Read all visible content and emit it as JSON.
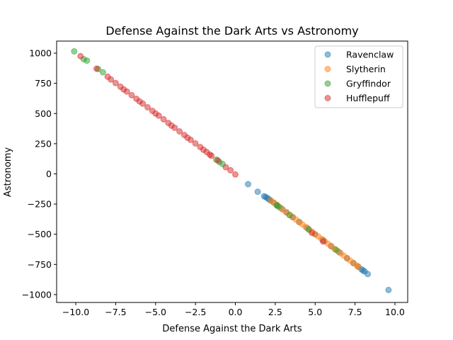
{
  "chart_data": {
    "type": "scatter",
    "title": "Defense Against the Dark Arts vs Astronomy",
    "xlabel": "Defense Against the Dark Arts",
    "ylabel": "Astronomy",
    "xlim": [
      -11.2,
      10.8
    ],
    "ylim": [
      -1065,
      1100
    ],
    "xticks": [
      -10.0,
      -7.5,
      -5.0,
      -2.5,
      0.0,
      2.5,
      5.0,
      7.5,
      10.0
    ],
    "xtick_labels": [
      "−10.0",
      "−7.5",
      "−5.0",
      "−2.5",
      "0.0",
      "2.5",
      "5.0",
      "7.5",
      "10.0"
    ],
    "yticks": [
      1000,
      750,
      500,
      250,
      0,
      -250,
      -500,
      -750,
      -1000
    ],
    "ytick_labels": [
      "1000",
      "750",
      "500",
      "250",
      "0",
      "−250",
      "−500",
      "−750",
      "−1000"
    ],
    "grid": false,
    "legend_position": "top-right",
    "marker_opacity": 0.5,
    "series": [
      {
        "name": "Ravenclaw",
        "color": "#1f77b4",
        "points": [
          [
            0.8,
            -85
          ],
          [
            1.4,
            -148
          ],
          [
            1.8,
            -185
          ],
          [
            1.9,
            -192
          ],
          [
            2.0,
            -200
          ],
          [
            2.1,
            -210
          ],
          [
            2.2,
            -220
          ],
          [
            2.4,
            -238
          ],
          [
            2.6,
            -258
          ],
          [
            2.9,
            -288
          ],
          [
            3.2,
            -318
          ],
          [
            3.6,
            -358
          ],
          [
            4.0,
            -398
          ],
          [
            4.5,
            -448
          ],
          [
            5.0,
            -500
          ],
          [
            5.5,
            -548
          ],
          [
            6.0,
            -598
          ],
          [
            6.5,
            -648
          ],
          [
            7.0,
            -698
          ],
          [
            7.4,
            -738
          ],
          [
            7.7,
            -768
          ],
          [
            7.9,
            -790
          ],
          [
            8.0,
            -800
          ],
          [
            8.1,
            -808
          ],
          [
            8.3,
            -830
          ],
          [
            9.6,
            -962
          ]
        ]
      },
      {
        "name": "Slytherin",
        "color": "#ff7f0e",
        "points": [
          [
            2.2,
            -218
          ],
          [
            2.4,
            -238
          ],
          [
            2.6,
            -255
          ],
          [
            2.8,
            -278
          ],
          [
            3.0,
            -298
          ],
          [
            3.2,
            -320
          ],
          [
            3.4,
            -338
          ],
          [
            3.6,
            -360
          ],
          [
            3.8,
            -378
          ],
          [
            4.0,
            -400
          ],
          [
            4.2,
            -418
          ],
          [
            4.4,
            -440
          ],
          [
            4.6,
            -458
          ],
          [
            4.8,
            -478
          ],
          [
            5.0,
            -500
          ],
          [
            5.2,
            -518
          ],
          [
            5.4,
            -540
          ],
          [
            5.6,
            -558
          ],
          [
            5.8,
            -578
          ],
          [
            6.0,
            -600
          ],
          [
            6.2,
            -620
          ],
          [
            6.4,
            -638
          ],
          [
            6.6,
            -658
          ],
          [
            6.8,
            -678
          ],
          [
            7.0,
            -700
          ],
          [
            7.2,
            -718
          ],
          [
            7.4,
            -740
          ],
          [
            7.6,
            -758
          ],
          [
            7.7,
            -770
          ]
        ]
      },
      {
        "name": "Gryffindor",
        "color": "#2ca02c",
        "points": [
          [
            -10.1,
            1015
          ],
          [
            -9.5,
            950
          ],
          [
            -9.3,
            938
          ],
          [
            -8.6,
            868
          ],
          [
            -8.3,
            842
          ],
          [
            -1.2,
            118
          ],
          [
            -1.0,
            98
          ],
          [
            -0.8,
            82
          ],
          [
            2.6,
            -262
          ],
          [
            2.7,
            -270
          ],
          [
            3.4,
            -342
          ],
          [
            4.6,
            -462
          ],
          [
            6.3,
            -628
          ]
        ]
      },
      {
        "name": "Hufflepuff",
        "color": "#d62728",
        "points": [
          [
            -9.7,
            975
          ],
          [
            -8.7,
            872
          ],
          [
            -8.0,
            805
          ],
          [
            -7.8,
            782
          ],
          [
            -7.5,
            752
          ],
          [
            -7.2,
            722
          ],
          [
            -7.0,
            700
          ],
          [
            -6.8,
            682
          ],
          [
            -6.5,
            652
          ],
          [
            -6.2,
            622
          ],
          [
            -6.0,
            600
          ],
          [
            -5.8,
            582
          ],
          [
            -5.5,
            552
          ],
          [
            -5.2,
            522
          ],
          [
            -5.0,
            500
          ],
          [
            -4.8,
            482
          ],
          [
            -4.5,
            452
          ],
          [
            -4.2,
            422
          ],
          [
            -4.0,
            400
          ],
          [
            -3.8,
            382
          ],
          [
            -3.5,
            352
          ],
          [
            -3.2,
            322
          ],
          [
            -3.0,
            300
          ],
          [
            -2.8,
            282
          ],
          [
            -2.5,
            252
          ],
          [
            -2.2,
            222
          ],
          [
            -2.0,
            200
          ],
          [
            -1.8,
            182
          ],
          [
            -1.6,
            160
          ],
          [
            -1.5,
            150
          ],
          [
            -1.1,
            112
          ],
          [
            -0.6,
            55
          ],
          [
            -0.3,
            30
          ],
          [
            0.0,
            -5
          ],
          [
            4.8,
            -488
          ],
          [
            5.5,
            -560
          ]
        ]
      }
    ]
  }
}
